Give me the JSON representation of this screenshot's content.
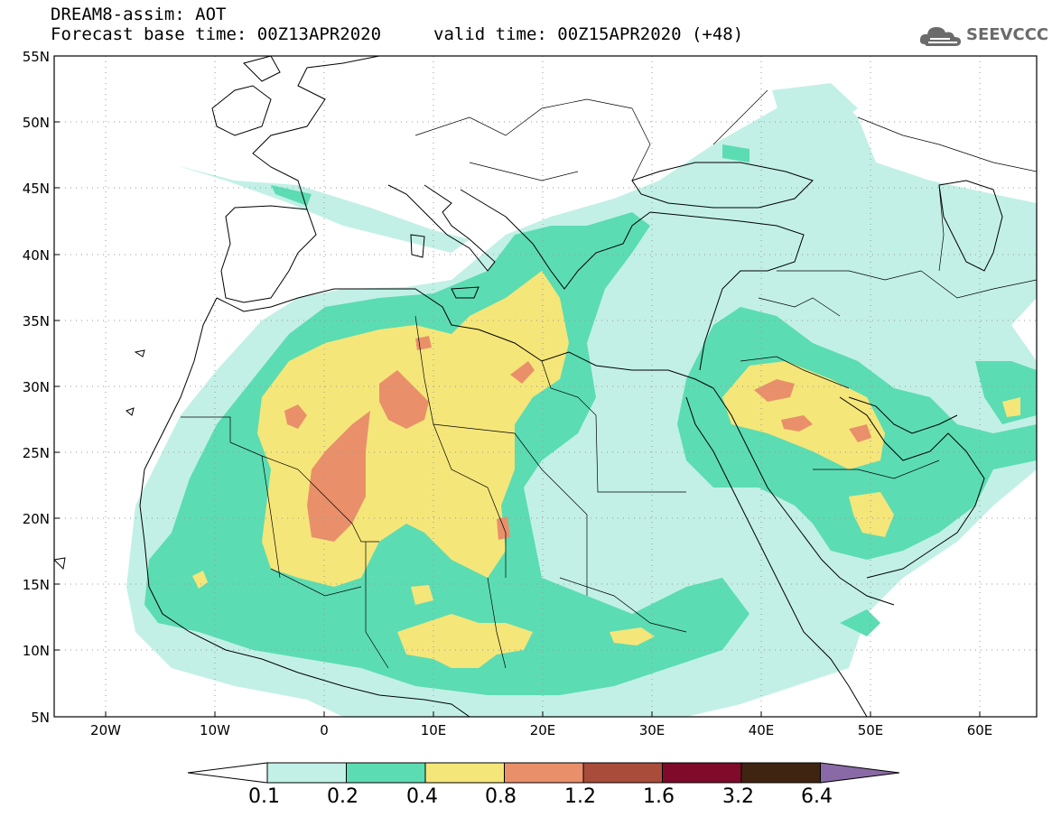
{
  "header": {
    "title_line1": "DREAM8-assim: AOT",
    "title_line2": "Forecast base time: 00Z13APR2020",
    "valid_time": "valid time: 00Z15APR2020 (+48)",
    "logo_text": "SEEVCCC"
  },
  "axes": {
    "lat_labels": [
      "55N",
      "50N",
      "45N",
      "40N",
      "35N",
      "30N",
      "25N",
      "20N",
      "15N",
      "10N",
      "5N"
    ],
    "lon_labels": [
      "20W",
      "10W",
      "0",
      "10E",
      "20E",
      "30E",
      "40E",
      "50E",
      "60E"
    ]
  },
  "colorbar": {
    "labels": [
      "0.1",
      "0.2",
      "0.4",
      "0.8",
      "1.2",
      "1.6",
      "3.2",
      "6.4"
    ],
    "colors": [
      "#ffffff",
      "#c2f0e6",
      "#5cdcb2",
      "#f5e67a",
      "#e9906a",
      "#aa4c3a",
      "#7f0a2a",
      "#3f2412",
      "#8a6aa6"
    ]
  },
  "colors": {
    "level_0_1": "#c2f0e6",
    "level_0_2": "#5cdcb2",
    "level_0_4": "#f5e67a",
    "level_0_8": "#e9906a",
    "coast": "#000000",
    "grid": "#888888"
  }
}
